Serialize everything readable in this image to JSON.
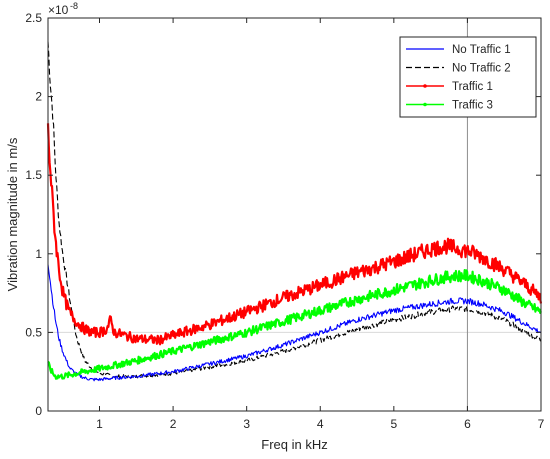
{
  "chart_data": {
    "type": "line",
    "xlabel": "Freq in kHz",
    "ylabel": "Vibration magnitude in m/s",
    "y_exponent_label": "×10",
    "y_exponent_power": "-8",
    "xlim": [
      0.3,
      7
    ],
    "ylim": [
      0,
      2.5
    ],
    "x_ticks": [
      1,
      2,
      3,
      4,
      5,
      6,
      7
    ],
    "x_tick_labels": [
      "1",
      "2",
      "3",
      "4",
      "5",
      "6",
      "7"
    ],
    "y_ticks": [
      0,
      0.5,
      1,
      1.5,
      2,
      2.5
    ],
    "y_tick_labels": [
      "0",
      "0.5",
      "1",
      "1.5",
      "2",
      "2.5"
    ],
    "legend_position": "top-right",
    "vertical_marker_x": 6,
    "reference_line_y": 0.5,
    "series": [
      {
        "name": "No Traffic 1",
        "color": "#0000ff",
        "dash": "solid",
        "marker": "none",
        "x": [
          0.3,
          0.35,
          0.4,
          0.45,
          0.5,
          0.55,
          0.6,
          0.7,
          0.8,
          0.9,
          1.0,
          1.2,
          1.5,
          2.0,
          2.5,
          3.0,
          3.5,
          4.0,
          4.5,
          5.0,
          5.5,
          5.8,
          6.0,
          6.2,
          6.5,
          6.8,
          7.0
        ],
        "y": [
          0.95,
          0.75,
          0.58,
          0.46,
          0.38,
          0.32,
          0.27,
          0.23,
          0.21,
          0.2,
          0.2,
          0.21,
          0.22,
          0.25,
          0.3,
          0.35,
          0.42,
          0.5,
          0.58,
          0.64,
          0.68,
          0.7,
          0.7,
          0.68,
          0.63,
          0.55,
          0.5
        ]
      },
      {
        "name": "No Traffic 2",
        "color": "#000000",
        "dash": "dashed",
        "marker": "none",
        "x": [
          0.3,
          0.33,
          0.37,
          0.4,
          0.45,
          0.5,
          0.55,
          0.6,
          0.65,
          0.7,
          0.8,
          0.9,
          1.0,
          1.2,
          1.5,
          2.0,
          2.5,
          3.0,
          3.5,
          4.0,
          4.5,
          5.0,
          5.5,
          5.8,
          6.0,
          6.2,
          6.5,
          6.8,
          7.0
        ],
        "y": [
          2.35,
          2.1,
          1.85,
          1.55,
          1.2,
          1.0,
          0.85,
          0.7,
          0.55,
          0.45,
          0.32,
          0.27,
          0.24,
          0.22,
          0.22,
          0.24,
          0.28,
          0.32,
          0.38,
          0.45,
          0.52,
          0.58,
          0.63,
          0.65,
          0.65,
          0.63,
          0.58,
          0.5,
          0.45
        ]
      },
      {
        "name": "Traffic 1",
        "color": "#ff0000",
        "dash": "solid",
        "marker": "dot",
        "x": [
          0.3,
          0.35,
          0.4,
          0.45,
          0.5,
          0.55,
          0.6,
          0.7,
          0.8,
          0.9,
          1.0,
          1.1,
          1.15,
          1.2,
          1.5,
          1.8,
          2.0,
          2.5,
          3.0,
          3.5,
          4.0,
          4.5,
          5.0,
          5.5,
          5.7,
          6.0,
          6.2,
          6.5,
          6.8,
          7.0
        ],
        "y": [
          1.78,
          1.4,
          1.1,
          0.9,
          0.76,
          0.68,
          0.62,
          0.56,
          0.52,
          0.5,
          0.5,
          0.52,
          0.58,
          0.5,
          0.46,
          0.45,
          0.48,
          0.55,
          0.63,
          0.72,
          0.8,
          0.88,
          0.95,
          1.03,
          1.05,
          1.02,
          0.98,
          0.9,
          0.8,
          0.72
        ]
      },
      {
        "name": "Traffic 3",
        "color": "#00ff00",
        "dash": "solid",
        "marker": "dot",
        "x": [
          0.3,
          0.35,
          0.4,
          0.5,
          0.6,
          0.7,
          0.8,
          1.0,
          1.2,
          1.5,
          2.0,
          2.5,
          3.0,
          3.5,
          4.0,
          4.5,
          5.0,
          5.5,
          5.8,
          6.0,
          6.2,
          6.5,
          6.8,
          7.0
        ],
        "y": [
          0.3,
          0.25,
          0.22,
          0.22,
          0.23,
          0.24,
          0.25,
          0.27,
          0.29,
          0.32,
          0.38,
          0.44,
          0.5,
          0.57,
          0.64,
          0.71,
          0.77,
          0.83,
          0.86,
          0.86,
          0.83,
          0.77,
          0.68,
          0.63
        ]
      }
    ]
  }
}
